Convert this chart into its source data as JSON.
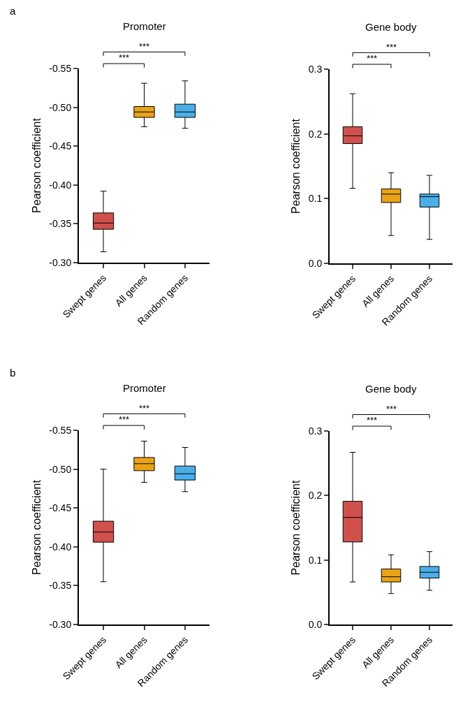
{
  "chart_data": [
    {
      "type": "box",
      "title": "Promoter",
      "ylabel": "Pearson coefficient",
      "categories": [
        "Swept genes",
        "All genes",
        "Random genes"
      ],
      "colors": [
        "#d0504c",
        "#e8a317",
        "#4aaee8"
      ],
      "boxes": [
        {
          "low": -0.392,
          "q1": -0.364,
          "median": -0.351,
          "q3": -0.343,
          "high": -0.314
        },
        {
          "low": -0.531,
          "q1": -0.501,
          "median": -0.494,
          "q3": -0.487,
          "high": -0.475
        },
        {
          "low": -0.534,
          "q1": -0.504,
          "median": -0.494,
          "q3": -0.487,
          "high": -0.473
        }
      ],
      "ylim": [
        -0.3,
        -0.55
      ],
      "yticks": [
        {
          "value": -0.55,
          "label": "-0.55"
        },
        {
          "value": -0.5,
          "label": "-0.50"
        },
        {
          "value": -0.45,
          "label": "-0.45"
        },
        {
          "value": -0.4,
          "label": "-0.40"
        },
        {
          "value": -0.35,
          "label": "-0.35"
        },
        {
          "value": -0.3,
          "label": "-0.30"
        }
      ],
      "annotations": [
        "a",
        "***",
        "***"
      ]
    },
    {
      "type": "box",
      "title": "Gene body",
      "ylabel": "Pearson coefficient",
      "categories": [
        "Swept genes",
        "All genes",
        "Random genes"
      ],
      "colors": [
        "#d0504c",
        "#e8a317",
        "#4aaee8"
      ],
      "boxes": [
        {
          "low": 0.116,
          "q1": 0.185,
          "median": 0.197,
          "q3": 0.211,
          "high": 0.262
        },
        {
          "low": 0.043,
          "q1": 0.094,
          "median": 0.107,
          "q3": 0.115,
          "high": 0.14
        },
        {
          "low": 0.037,
          "q1": 0.087,
          "median": 0.103,
          "q3": 0.107,
          "high": 0.136
        }
      ],
      "ylim": [
        0.0,
        0.3
      ],
      "yticks": [
        {
          "value": 0.0,
          "label": "0.0"
        },
        {
          "value": 0.1,
          "label": "0.1"
        },
        {
          "value": 0.2,
          "label": "0.2"
        },
        {
          "value": 0.3,
          "label": "0.3"
        }
      ],
      "annotations": [
        "***",
        "***"
      ]
    },
    {
      "type": "box",
      "title": "Promoter",
      "ylabel": "Pearson coefficient",
      "categories": [
        "Swept genes",
        "All genes",
        "Random genes"
      ],
      "colors": [
        "#d0504c",
        "#e8a317",
        "#4aaee8"
      ],
      "boxes": [
        {
          "low": -0.5,
          "q1": -0.433,
          "median": -0.419,
          "q3": -0.406,
          "high": -0.355
        },
        {
          "low": -0.536,
          "q1": -0.515,
          "median": -0.507,
          "q3": -0.498,
          "high": -0.483
        },
        {
          "low": -0.528,
          "q1": -0.504,
          "median": -0.494,
          "q3": -0.486,
          "high": -0.471
        }
      ],
      "ylim": [
        -0.3,
        -0.55
      ],
      "yticks": [
        {
          "value": -0.55,
          "label": "-0.55"
        },
        {
          "value": -0.5,
          "label": "-0.50"
        },
        {
          "value": -0.45,
          "label": "-0.45"
        },
        {
          "value": -0.4,
          "label": "-0.40"
        },
        {
          "value": -0.35,
          "label": "-0.35"
        },
        {
          "value": -0.3,
          "label": "-0.30"
        }
      ],
      "annotations": [
        "b",
        "***",
        "***"
      ]
    },
    {
      "type": "box",
      "title": "Gene body",
      "ylabel": "Pearson coefficient",
      "categories": [
        "Swept genes",
        "All genes",
        "Random genes"
      ],
      "colors": [
        "#d0504c",
        "#e8a317",
        "#4aaee8"
      ],
      "boxes": [
        {
          "low": 0.066,
          "q1": 0.128,
          "median": 0.166,
          "q3": 0.191,
          "high": 0.267
        },
        {
          "low": 0.048,
          "q1": 0.066,
          "median": 0.074,
          "q3": 0.086,
          "high": 0.108
        },
        {
          "low": 0.053,
          "q1": 0.072,
          "median": 0.081,
          "q3": 0.09,
          "high": 0.113
        }
      ],
      "ylim": [
        0.0,
        0.3
      ],
      "yticks": [
        {
          "value": 0.0,
          "label": "0.0"
        },
        {
          "value": 0.1,
          "label": "0.1"
        },
        {
          "value": 0.2,
          "label": "0.2"
        },
        {
          "value": 0.3,
          "label": "0.3"
        }
      ],
      "annotations": [
        "***",
        "***"
      ]
    }
  ]
}
